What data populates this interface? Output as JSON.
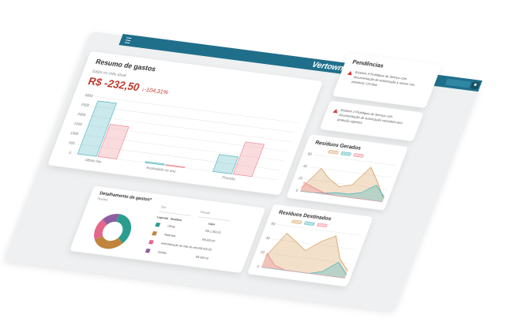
{
  "header": {
    "brand": "Vertown"
  },
  "summary": {
    "title": "Resumo de gastos",
    "subtitle": "Saldo no mês atual",
    "balance": "R$ -232,50",
    "change": "↓-104,31%",
    "chart": {
      "type": "bar",
      "categories": [
        "Obras nas",
        "Acumulado no ano",
        "Previsto"
      ],
      "series": [
        {
          "color": "#4fb7bf",
          "values": [
            2800,
            60,
            900
          ]
        },
        {
          "color": "#ef8a96",
          "values": [
            1700,
            40,
            1700
          ]
        }
      ],
      "ylim": [
        0,
        3000
      ],
      "yticks": [
        0,
        500,
        1000,
        1500,
        2000,
        2500,
        3000
      ],
      "grid": true
    }
  },
  "pending": {
    "title": "Pendências",
    "items": [
      {
        "lines": [
          "Existem 3 Protótipos de Serviço com",
          "documentação de autorização a vencer nos",
          "próximos 120 dias"
        ]
      },
      {
        "lines": [
          "Existem 2 Protótipos de Serviço com",
          "documentação de autorização vencida/o sem",
          "proteção vigentes"
        ]
      }
    ]
  },
  "generated": {
    "title": "Resíduos Gerados",
    "chart": {
      "type": "area",
      "series": [
        {
          "color": "#d9a66b",
          "values": [
            5,
            40,
            25,
            15,
            20,
            52,
            30,
            5
          ]
        },
        {
          "color": "#4fb7bf",
          "values": [
            0,
            0,
            2,
            5,
            5,
            10,
            25,
            8
          ]
        },
        {
          "color": "#ef8a96",
          "values": [
            15,
            8,
            2,
            0,
            0,
            0,
            0,
            0
          ]
        }
      ],
      "ylim": [
        0,
        60
      ],
      "yticks": [
        0,
        20,
        40,
        60
      ],
      "grid": true
    }
  },
  "destined": {
    "title": "Resíduos Destinados",
    "chart": {
      "type": "area",
      "series": [
        {
          "color": "#d9a66b",
          "values": [
            15,
            50,
            40,
            30,
            45,
            55,
            25,
            10
          ]
        },
        {
          "color": "#4fb7bf",
          "values": [
            0,
            0,
            0,
            0,
            0,
            5,
            20,
            5
          ]
        },
        {
          "color": "#ef8a96",
          "values": [
            20,
            5,
            0,
            0,
            0,
            0,
            0,
            0
          ]
        }
      ],
      "ylim": [
        0,
        60
      ],
      "yticks": [
        0,
        20,
        40,
        60
      ],
      "grid": true
    }
  },
  "details": {
    "title": "Detalhamento de gastos*",
    "subtitle": "Resíduo",
    "filters": [
      "Tipo",
      "Período"
    ],
    "chart": {
      "type": "pie",
      "values": [
        35,
        30,
        20,
        15
      ],
      "colors": [
        "#2a9d8f",
        "#c0843c",
        "#e5668a",
        "#8e5ea2"
      ]
    },
    "columns": [
      "Legenda",
      "Detalhes",
      "Valor"
    ],
    "rows": [
      [
        "Obras",
        "R$ 1.050,00"
      ],
      [
        "Materiais",
        "R$ 900,00"
      ],
      [
        "Administração de mão de obra",
        "R$ 600,00"
      ],
      [
        "Gestão",
        "R$ 450,00"
      ]
    ]
  }
}
